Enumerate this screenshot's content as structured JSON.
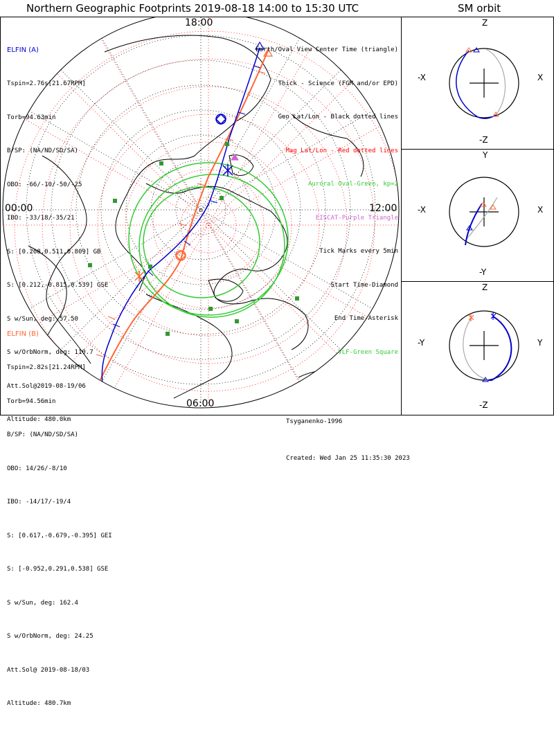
{
  "title": "Northern Geographic Footprints 2019-08-18 14:00 to 15:30 UTC",
  "sm_title": "SM orbit",
  "utc_labels": {
    "top": "18:00",
    "left": "00:00",
    "right": "12:00",
    "bottom": "06:00"
  },
  "elfin_a": {
    "header": "ELFIN (A)",
    "lines": [
      "Tspin=2.76s[21.67RPM]",
      "Torb=94.63min",
      "B/SP: (NA/ND/SD/SA)",
      "OBO: -66/-10/-50/-25",
      "IBO: -33/18/-35/21",
      "S: [0.268,0.511,0.809] GB",
      "S: [0.212,-0.815,0.539] GSE",
      "S w/Sun, deg: 57.50",
      "S w/OrbNorm, deg: 110.7",
      "Att.Sol@2019-08-19/06",
      "Altitude: 480.0km"
    ],
    "color": "#0000cc"
  },
  "elfin_b": {
    "header": "ELFIN (B)",
    "lines": [
      "Tspin=2.82s[21.24RPM]",
      "Torb=94.56min",
      "B/SP: (NA/ND/SD/SA)",
      "OBO: 14/26/-8/10",
      "IBO: -14/17/-19/4",
      "S: [0.617,-0.679,-0.395] GEI",
      "S: [-0.952,0.291,0.538] GSE",
      "S w/Sun, deg: 162.4",
      "S w/OrbNorm, deg: 24.25",
      "Att.Sol@ 2019-08-18/03",
      "Altitude: 480.7km"
    ],
    "color": "#ff6633"
  },
  "legend": [
    {
      "text": "Earth/Oval View Center Time (triangle)",
      "color": "#000000"
    },
    {
      "text": "Thick - Science (FGM and/or EPD)",
      "color": "#000000"
    },
    {
      "text": "Geo Lat/Lon - Black dotted lines",
      "color": "#000000"
    },
    {
      "text": "Mag Lat/Lon - Red dotted lines",
      "color": "#ff0000"
    },
    {
      "text": "Auroral Oval-Green, kp=2",
      "color": "#33cc33"
    },
    {
      "text": "EISCAT-Purple Triangle",
      "color": "#cc66cc"
    },
    {
      "text": "Tick Marks every 5min",
      "color": "#000000"
    },
    {
      "text": "Start Time-Diamond",
      "color": "#000000"
    },
    {
      "text": "End Time-Asterisk",
      "color": "#000000"
    },
    {
      "text": "VLF-Green Square",
      "color": "#33cc33"
    }
  ],
  "credits": [
    "Tsyganenko-1996",
    "Created: Wed Jan 25 11:35:30 2023"
  ],
  "sm_panels": [
    {
      "top": "Z",
      "bottom": "-Z",
      "left": "-X",
      "right": "X"
    },
    {
      "top": "Y",
      "bottom": "-Y",
      "left": "-X",
      "right": "X"
    },
    {
      "top": "Z",
      "bottom": "-Z",
      "left": "-Y",
      "right": "Y"
    }
  ],
  "colors": {
    "ground": "#33cc33",
    "mag_grid": "#ff0000",
    "geo_grid": "#000000",
    "eiscat": "#cc66cc"
  }
}
